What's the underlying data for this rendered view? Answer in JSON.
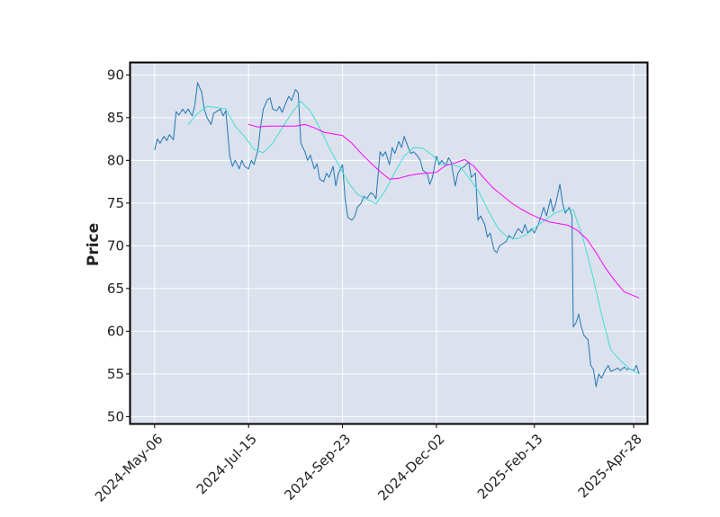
{
  "chart_data": {
    "type": "line",
    "title": "",
    "xlabel": "",
    "ylabel": "Price",
    "ylim": [
      49.2,
      91.4
    ],
    "yticks": [
      50,
      55,
      60,
      65,
      70,
      75,
      80,
      85,
      90
    ],
    "xlim": [
      "2024-04-18",
      "2025-05-08"
    ],
    "xticks": [
      "2024-05-06",
      "2024-07-15",
      "2024-09-23",
      "2024-12-02",
      "2025-02-13",
      "2025-04-28"
    ],
    "xtick_labels": [
      "2024-May-06",
      "2024-Jul-15",
      "2024-Sep-23",
      "2024-Dec-02",
      "2025-Feb-13",
      "2025-Apr-28"
    ],
    "grid": true,
    "background": "#dce1ee",
    "series": [
      {
        "color": "#1f77b4",
        "points": [
          [
            "2024-05-06",
            81.2
          ],
          [
            "2024-05-08",
            82.5
          ],
          [
            "2024-05-10",
            82.0
          ],
          [
            "2024-05-13",
            82.8
          ],
          [
            "2024-05-15",
            82.3
          ],
          [
            "2024-05-17",
            83.0
          ],
          [
            "2024-05-20",
            82.4
          ],
          [
            "2024-05-22",
            85.7
          ],
          [
            "2024-05-24",
            85.3
          ],
          [
            "2024-05-27",
            86.0
          ],
          [
            "2024-05-29",
            85.5
          ],
          [
            "2024-05-31",
            86.0
          ],
          [
            "2024-06-03",
            85.2
          ],
          [
            "2024-06-05",
            86.5
          ],
          [
            "2024-06-07",
            89.1
          ],
          [
            "2024-06-10",
            88.0
          ],
          [
            "2024-06-12",
            86.0
          ],
          [
            "2024-06-14",
            85.0
          ],
          [
            "2024-06-17",
            84.2
          ],
          [
            "2024-06-19",
            85.5
          ],
          [
            "2024-06-21",
            85.7
          ],
          [
            "2024-06-24",
            86.0
          ],
          [
            "2024-06-26",
            85.2
          ],
          [
            "2024-06-28",
            85.8
          ],
          [
            "2024-07-01",
            80.5
          ],
          [
            "2024-07-03",
            79.3
          ],
          [
            "2024-07-05",
            80.0
          ],
          [
            "2024-07-08",
            79.0
          ],
          [
            "2024-07-10",
            80.0
          ],
          [
            "2024-07-12",
            79.3
          ],
          [
            "2024-07-15",
            79.0
          ],
          [
            "2024-07-17",
            80.0
          ],
          [
            "2024-07-19",
            79.5
          ],
          [
            "2024-07-22",
            81.2
          ],
          [
            "2024-07-24",
            84.0
          ],
          [
            "2024-07-26",
            86.0
          ],
          [
            "2024-07-29",
            87.1
          ],
          [
            "2024-07-31",
            87.3
          ],
          [
            "2024-08-02",
            86.0
          ],
          [
            "2024-08-05",
            85.8
          ],
          [
            "2024-08-07",
            86.3
          ],
          [
            "2024-08-09",
            85.6
          ],
          [
            "2024-08-12",
            86.8
          ],
          [
            "2024-08-14",
            87.5
          ],
          [
            "2024-08-16",
            87.0
          ],
          [
            "2024-08-19",
            88.3
          ],
          [
            "2024-08-21",
            87.9
          ],
          [
            "2024-08-23",
            82.0
          ],
          [
            "2024-08-26",
            81.0
          ],
          [
            "2024-08-28",
            80.0
          ],
          [
            "2024-08-30",
            80.6
          ],
          [
            "2024-09-02",
            79.0
          ],
          [
            "2024-09-04",
            79.6
          ],
          [
            "2024-09-06",
            77.8
          ],
          [
            "2024-09-09",
            77.5
          ],
          [
            "2024-09-11",
            78.5
          ],
          [
            "2024-09-13",
            78.0
          ],
          [
            "2024-09-16",
            79.3
          ],
          [
            "2024-09-18",
            77.0
          ],
          [
            "2024-09-20",
            78.5
          ],
          [
            "2024-09-23",
            79.5
          ],
          [
            "2024-09-25",
            75.5
          ],
          [
            "2024-09-27",
            73.3
          ],
          [
            "2024-09-30",
            73.0
          ],
          [
            "2024-10-02",
            73.4
          ],
          [
            "2024-10-04",
            74.5
          ],
          [
            "2024-10-07",
            75.0
          ],
          [
            "2024-10-09",
            75.8
          ],
          [
            "2024-10-11",
            75.5
          ],
          [
            "2024-10-14",
            76.2
          ],
          [
            "2024-10-16",
            76.0
          ],
          [
            "2024-10-18",
            75.5
          ],
          [
            "2024-10-21",
            81.0
          ],
          [
            "2024-10-23",
            80.5
          ],
          [
            "2024-10-25",
            81.0
          ],
          [
            "2024-10-28",
            79.5
          ],
          [
            "2024-10-30",
            81.5
          ],
          [
            "2024-11-01",
            80.8
          ],
          [
            "2024-11-04",
            82.2
          ],
          [
            "2024-11-06",
            81.5
          ],
          [
            "2024-11-08",
            82.8
          ],
          [
            "2024-11-11",
            81.5
          ],
          [
            "2024-11-13",
            80.8
          ],
          [
            "2024-11-15",
            81.0
          ],
          [
            "2024-11-18",
            80.5
          ],
          [
            "2024-11-20",
            80.0
          ],
          [
            "2024-11-22",
            78.8
          ],
          [
            "2024-11-25",
            78.5
          ],
          [
            "2024-11-27",
            77.2
          ],
          [
            "2024-11-29",
            78.0
          ],
          [
            "2024-12-02",
            80.5
          ],
          [
            "2024-12-04",
            79.5
          ],
          [
            "2024-12-06",
            80.0
          ],
          [
            "2024-12-09",
            79.4
          ],
          [
            "2024-12-11",
            80.3
          ],
          [
            "2024-12-13",
            79.8
          ],
          [
            "2024-12-16",
            77.0
          ],
          [
            "2024-12-18",
            78.5
          ],
          [
            "2024-12-20",
            79.0
          ],
          [
            "2024-12-23",
            79.3
          ],
          [
            "2024-12-26",
            79.8
          ],
          [
            "2024-12-28",
            78.0
          ],
          [
            "2024-12-31",
            78.5
          ],
          [
            "2025-01-02",
            73.0
          ],
          [
            "2025-01-04",
            73.5
          ],
          [
            "2025-01-07",
            72.5
          ],
          [
            "2025-01-09",
            71.0
          ],
          [
            "2025-01-11",
            71.5
          ],
          [
            "2025-01-14",
            69.5
          ],
          [
            "2025-01-16",
            69.2
          ],
          [
            "2025-01-18",
            70.0
          ],
          [
            "2025-01-21",
            70.3
          ],
          [
            "2025-01-23",
            70.5
          ],
          [
            "2025-01-25",
            71.2
          ],
          [
            "2025-01-28",
            70.8
          ],
          [
            "2025-01-30",
            71.5
          ],
          [
            "2025-02-01",
            72.0
          ],
          [
            "2025-02-04",
            71.5
          ],
          [
            "2025-02-06",
            72.5
          ],
          [
            "2025-02-08",
            71.5
          ],
          [
            "2025-02-11",
            72.0
          ],
          [
            "2025-02-13",
            71.5
          ],
          [
            "2025-02-16",
            72.5
          ],
          [
            "2025-02-18",
            73.5
          ],
          [
            "2025-02-20",
            74.5
          ],
          [
            "2025-02-22",
            73.5
          ],
          [
            "2025-02-25",
            75.5
          ],
          [
            "2025-02-27",
            74.0
          ],
          [
            "2025-03-01",
            75.0
          ],
          [
            "2025-03-04",
            77.2
          ],
          [
            "2025-03-06",
            75.0
          ],
          [
            "2025-03-08",
            73.8
          ],
          [
            "2025-03-11",
            74.5
          ],
          [
            "2025-03-13",
            73.5
          ],
          [
            "2025-03-14",
            60.5
          ],
          [
            "2025-03-16",
            61.0
          ],
          [
            "2025-03-18",
            62.0
          ],
          [
            "2025-03-20",
            60.5
          ],
          [
            "2025-03-22",
            59.5
          ],
          [
            "2025-03-25",
            59.0
          ],
          [
            "2025-03-27",
            56.0
          ],
          [
            "2025-03-29",
            55.5
          ],
          [
            "2025-03-31",
            53.5
          ],
          [
            "2025-04-02",
            55.0
          ],
          [
            "2025-04-04",
            54.5
          ],
          [
            "2025-04-07",
            55.5
          ],
          [
            "2025-04-09",
            56.0
          ],
          [
            "2025-04-11",
            55.3
          ],
          [
            "2025-04-14",
            55.5
          ],
          [
            "2025-04-16",
            55.7
          ],
          [
            "2025-04-18",
            55.4
          ],
          [
            "2025-04-21",
            55.8
          ],
          [
            "2025-04-23",
            55.5
          ],
          [
            "2025-04-25",
            55.6
          ],
          [
            "2025-04-28",
            55.4
          ],
          [
            "2025-04-30",
            56.0
          ],
          [
            "2025-05-02",
            55.0
          ]
        ]
      },
      {
        "color": "#40e0d0",
        "points": [
          [
            "2024-05-31",
            84.2
          ],
          [
            "2024-06-07",
            85.5
          ],
          [
            "2024-06-14",
            86.3
          ],
          [
            "2024-06-21",
            86.2
          ],
          [
            "2024-06-28",
            86.0
          ],
          [
            "2024-07-05",
            84.0
          ],
          [
            "2024-07-12",
            82.8
          ],
          [
            "2024-07-19",
            81.3
          ],
          [
            "2024-07-26",
            80.9
          ],
          [
            "2024-08-02",
            82.0
          ],
          [
            "2024-08-09",
            83.8
          ],
          [
            "2024-08-16",
            85.5
          ],
          [
            "2024-08-23",
            86.9
          ],
          [
            "2024-08-30",
            85.8
          ],
          [
            "2024-09-06",
            83.8
          ],
          [
            "2024-09-13",
            81.5
          ],
          [
            "2024-09-20",
            79.5
          ],
          [
            "2024-09-27",
            77.5
          ],
          [
            "2024-10-04",
            76.0
          ],
          [
            "2024-10-11",
            75.5
          ],
          [
            "2024-10-18",
            74.9
          ],
          [
            "2024-10-25",
            76.5
          ],
          [
            "2024-11-01",
            78.6
          ],
          [
            "2024-11-08",
            80.5
          ],
          [
            "2024-11-15",
            81.5
          ],
          [
            "2024-11-22",
            81.4
          ],
          [
            "2024-11-29",
            80.6
          ],
          [
            "2024-12-06",
            79.5
          ],
          [
            "2024-12-13",
            79.5
          ],
          [
            "2024-12-20",
            79.2
          ],
          [
            "2024-12-27",
            77.8
          ],
          [
            "2025-01-03",
            76.2
          ],
          [
            "2025-01-10",
            74.0
          ],
          [
            "2025-01-17",
            72.0
          ],
          [
            "2025-01-24",
            71.0
          ],
          [
            "2025-01-31",
            70.8
          ],
          [
            "2025-02-07",
            71.3
          ],
          [
            "2025-02-14",
            72.2
          ],
          [
            "2025-02-21",
            73.0
          ],
          [
            "2025-02-28",
            73.8
          ],
          [
            "2025-03-07",
            74.2
          ],
          [
            "2025-03-14",
            74.2
          ],
          [
            "2025-03-21",
            71.0
          ],
          [
            "2025-03-28",
            66.8
          ],
          [
            "2025-04-04",
            62.0
          ],
          [
            "2025-04-11",
            57.8
          ],
          [
            "2025-04-18",
            56.6
          ],
          [
            "2025-04-25",
            55.6
          ],
          [
            "2025-05-02",
            55.0
          ]
        ]
      },
      {
        "color": "#ff00ff",
        "points": [
          [
            "2024-07-15",
            84.2
          ],
          [
            "2024-07-22",
            83.9
          ],
          [
            "2024-07-29",
            84.0
          ],
          [
            "2024-08-05",
            84.0
          ],
          [
            "2024-08-12",
            84.0
          ],
          [
            "2024-08-19",
            84.0
          ],
          [
            "2024-08-26",
            84.2
          ],
          [
            "2024-09-02",
            83.8
          ],
          [
            "2024-09-09",
            83.3
          ],
          [
            "2024-09-16",
            83.1
          ],
          [
            "2024-09-23",
            82.9
          ],
          [
            "2024-09-30",
            82.0
          ],
          [
            "2024-10-07",
            80.8
          ],
          [
            "2024-10-14",
            79.7
          ],
          [
            "2024-10-21",
            78.7
          ],
          [
            "2024-10-28",
            77.8
          ],
          [
            "2024-11-04",
            77.9
          ],
          [
            "2024-11-11",
            78.2
          ],
          [
            "2024-11-18",
            78.4
          ],
          [
            "2024-11-25",
            78.5
          ],
          [
            "2024-12-02",
            78.6
          ],
          [
            "2024-12-09",
            79.4
          ],
          [
            "2024-12-16",
            79.7
          ],
          [
            "2024-12-23",
            80.1
          ],
          [
            "2024-12-30",
            79.3
          ],
          [
            "2025-01-06",
            78.0
          ],
          [
            "2025-01-13",
            76.8
          ],
          [
            "2025-01-20",
            75.9
          ],
          [
            "2025-01-27",
            75.0
          ],
          [
            "2025-02-03",
            74.3
          ],
          [
            "2025-02-10",
            73.7
          ],
          [
            "2025-02-17",
            73.2
          ],
          [
            "2025-02-24",
            72.8
          ],
          [
            "2025-03-03",
            72.6
          ],
          [
            "2025-03-10",
            72.4
          ],
          [
            "2025-03-17",
            71.8
          ],
          [
            "2025-03-24",
            70.8
          ],
          [
            "2025-03-31",
            69.2
          ],
          [
            "2025-04-07",
            67.4
          ],
          [
            "2025-04-14",
            65.9
          ],
          [
            "2025-04-21",
            64.6
          ],
          [
            "2025-05-02",
            63.9
          ]
        ]
      }
    ]
  }
}
